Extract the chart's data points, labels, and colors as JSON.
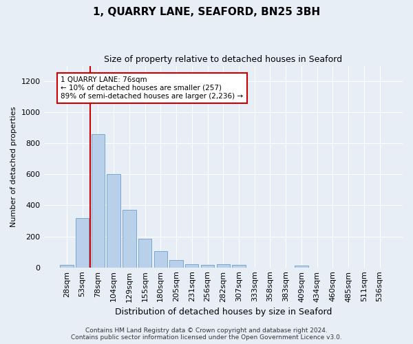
{
  "title": "1, QUARRY LANE, SEAFORD, BN25 3BH",
  "subtitle": "Size of property relative to detached houses in Seaford",
  "xlabel": "Distribution of detached houses by size in Seaford",
  "ylabel": "Number of detached properties",
  "bar_labels": [
    "28sqm",
    "53sqm",
    "78sqm",
    "104sqm",
    "129sqm",
    "155sqm",
    "180sqm",
    "205sqm",
    "231sqm",
    "256sqm",
    "282sqm",
    "307sqm",
    "333sqm",
    "358sqm",
    "383sqm",
    "409sqm",
    "434sqm",
    "460sqm",
    "485sqm",
    "511sqm",
    "536sqm"
  ],
  "bar_values": [
    18,
    320,
    860,
    600,
    370,
    185,
    107,
    48,
    22,
    18,
    20,
    18,
    0,
    0,
    0,
    12,
    0,
    0,
    0,
    0,
    0
  ],
  "bar_color": "#b8d0ea",
  "bar_edge_color": "#6a9fc8",
  "highlight_line_color": "#cc0000",
  "annotation_text": "1 QUARRY LANE: 76sqm\n← 10% of detached houses are smaller (257)\n89% of semi-detached houses are larger (2,236) →",
  "annotation_box_facecolor": "#ffffff",
  "annotation_box_edgecolor": "#cc0000",
  "ylim": [
    0,
    1300
  ],
  "yticks": [
    0,
    200,
    400,
    600,
    800,
    1000,
    1200
  ],
  "footer_line1": "Contains HM Land Registry data © Crown copyright and database right 2024.",
  "footer_line2": "Contains public sector information licensed under the Open Government Licence v3.0.",
  "bg_color": "#e8eef5",
  "plot_bg_color": "#e8eef5",
  "grid_color": "#ffffff",
  "title_fontsize": 11,
  "subtitle_fontsize": 9,
  "ylabel_fontsize": 8,
  "xlabel_fontsize": 9,
  "tick_fontsize": 8,
  "footer_fontsize": 6.5
}
